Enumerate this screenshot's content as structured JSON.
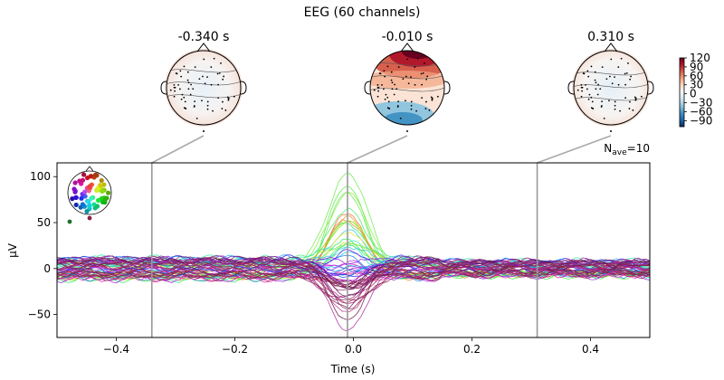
{
  "chart_data": {
    "type": "line",
    "title": "EEG (60 channels)",
    "xlabel": "Time (s)",
    "ylabel": "µV",
    "xlim": [
      -0.5,
      0.5
    ],
    "ylim": [
      -75,
      115
    ],
    "xticks": [
      -0.4,
      -0.2,
      0.0,
      0.2,
      0.4
    ],
    "xtick_labels": [
      "−0.4",
      "−0.2",
      "0.0",
      "0.2",
      "0.4"
    ],
    "yticks": [
      -50,
      0,
      50,
      100
    ],
    "ytick_labels": [
      "−50",
      "0",
      "50",
      "100"
    ],
    "annotation": {
      "prefix": "N",
      "subscript": "ave",
      "suffix": "=10"
    },
    "n_channels": 60,
    "peak_time": -0.01,
    "peak_max": 105,
    "peak_min": -65,
    "grid": false,
    "topomaps": [
      {
        "time": -0.34,
        "label": "-0.340 s"
      },
      {
        "time": -0.01,
        "label": "-0.010 s"
      },
      {
        "time": 0.31,
        "label": "0.310 s"
      }
    ],
    "colorbar": {
      "vmin": -110,
      "vmax": 120,
      "ticks": [
        120,
        90,
        60,
        30,
        0,
        -30,
        -60,
        -90
      ],
      "tick_labels": [
        "120",
        "90",
        "60",
        "30",
        "0",
        "−30",
        "−60",
        "−90"
      ],
      "colors": [
        "#053061",
        "#2166ac",
        "#4393c3",
        "#92c5de",
        "#d1e5f0",
        "#f7f7f7",
        "#fddbc7",
        "#f4a582",
        "#d6604d",
        "#b2182b",
        "#67001f"
      ]
    }
  }
}
